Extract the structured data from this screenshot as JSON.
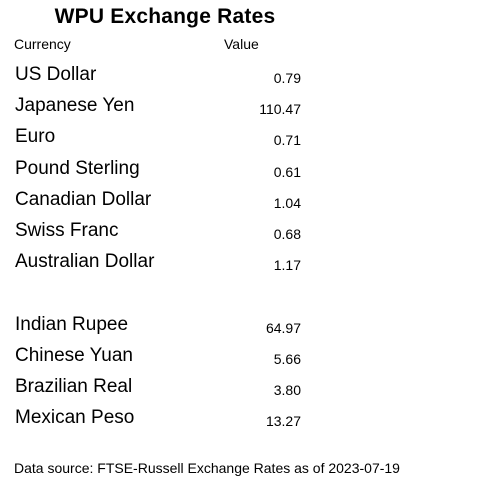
{
  "title": "WPU Exchange Rates",
  "headers": {
    "currency": "Currency",
    "value": "Value"
  },
  "group_one": [
    {
      "currency": "US Dollar",
      "value": "0.79"
    },
    {
      "currency": "Japanese Yen",
      "value": "110.47"
    },
    {
      "currency": "Euro",
      "value": "0.71"
    },
    {
      "currency": "Pound Sterling",
      "value": "0.61"
    },
    {
      "currency": "Canadian Dollar",
      "value": "1.04"
    },
    {
      "currency": "Swiss Franc",
      "value": "0.68"
    },
    {
      "currency": "Australian Dollar",
      "value": "1.17"
    }
  ],
  "group_two": [
    {
      "currency": "Indian Rupee",
      "value": "64.97"
    },
    {
      "currency": "Chinese Yuan",
      "value": "5.66"
    },
    {
      "currency": "Brazilian Real",
      "value": "3.80"
    },
    {
      "currency": "Mexican Peso",
      "value": "13.27"
    }
  ],
  "footer": {
    "source": "Data source: FTSE-Russell Exchange Rates as of 2023-07-19"
  }
}
